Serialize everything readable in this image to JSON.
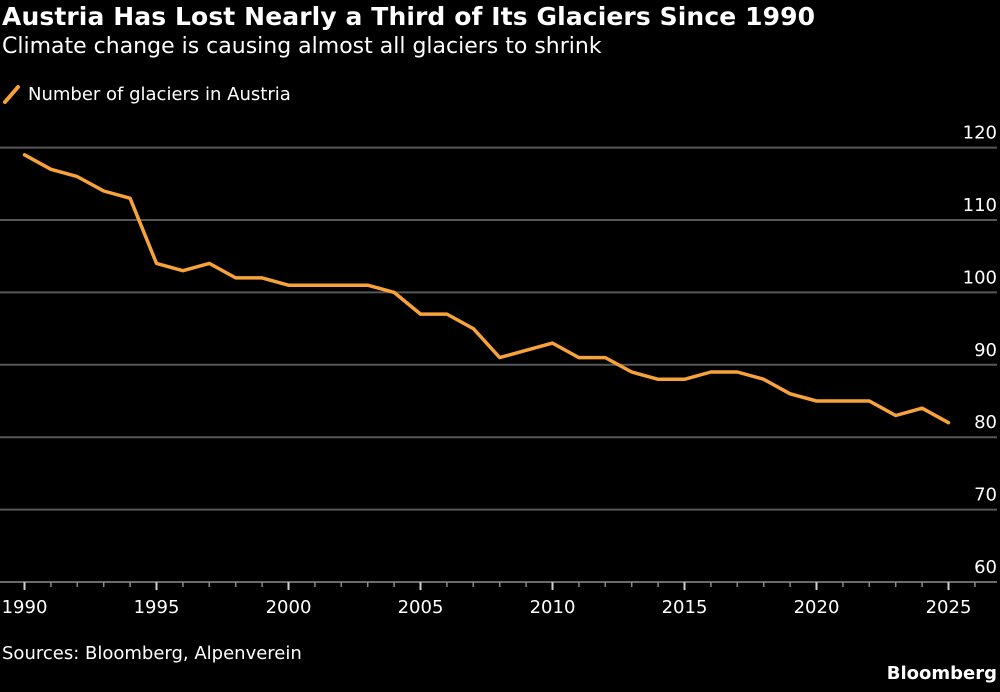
{
  "header": {
    "title": "Austria Has Lost Nearly a Third of Its Glaciers Since 1990",
    "subtitle": "Climate change is causing almost all glaciers to shrink"
  },
  "legend": {
    "label": "Number of glaciers in Austria",
    "icon": "line-swatch-icon",
    "color": "#F7A23A"
  },
  "footer": {
    "source": "Sources: Bloomberg, Alpenverein",
    "brand": "Bloomberg"
  },
  "colors": {
    "background": "#000000",
    "series": "#F7A23A",
    "grid": "#575757",
    "text": "#FFFFFF"
  },
  "chart_data": {
    "type": "line",
    "title": "Austria Has Lost Nearly a Third of Its Glaciers Since 1990",
    "subtitle": "Climate change is causing almost all glaciers to shrink",
    "xlabel": "",
    "ylabel": "",
    "x": [
      1990,
      1991,
      1992,
      1993,
      1994,
      1995,
      1996,
      1997,
      1998,
      1999,
      2000,
      2001,
      2002,
      2003,
      2004,
      2005,
      2006,
      2007,
      2008,
      2009,
      2010,
      2011,
      2012,
      2013,
      2014,
      2015,
      2016,
      2017,
      2018,
      2019,
      2020,
      2021,
      2022,
      2023,
      2024,
      2025
    ],
    "series": [
      {
        "name": "Number of glaciers in Austria",
        "color": "#F7A23A",
        "values": [
          119,
          117,
          116,
          114,
          113,
          104,
          103,
          104,
          102,
          102,
          101,
          101,
          101,
          101,
          100,
          97,
          97,
          95,
          91,
          92,
          93,
          91,
          91,
          89,
          88,
          88,
          89,
          89,
          88,
          86,
          85,
          85,
          85,
          83,
          84,
          82
        ]
      }
    ],
    "xlim": [
      1990,
      2026.5
    ],
    "ylim": [
      60,
      120
    ],
    "x_ticks_major": [
      "1990",
      "1995",
      "2000",
      "2005",
      "2010",
      "2015",
      "2020",
      "2025"
    ],
    "x_ticks_minor_years": [
      1990,
      1991,
      1992,
      1993,
      1994,
      1995,
      1996,
      1997,
      1998,
      1999,
      2000,
      2001,
      2002,
      2003,
      2004,
      2005,
      2006,
      2007,
      2008,
      2009,
      2010,
      2011,
      2012,
      2013,
      2014,
      2015,
      2016,
      2017,
      2018,
      2019,
      2020,
      2021,
      2022,
      2023,
      2024,
      2025,
      2026
    ],
    "y_ticks": [
      "60",
      "70",
      "80",
      "90",
      "100",
      "110",
      "120"
    ],
    "y_axis_side": "right",
    "grid": true,
    "legend_position": "top-left",
    "source": "Sources: Bloomberg, Alpenverein"
  }
}
